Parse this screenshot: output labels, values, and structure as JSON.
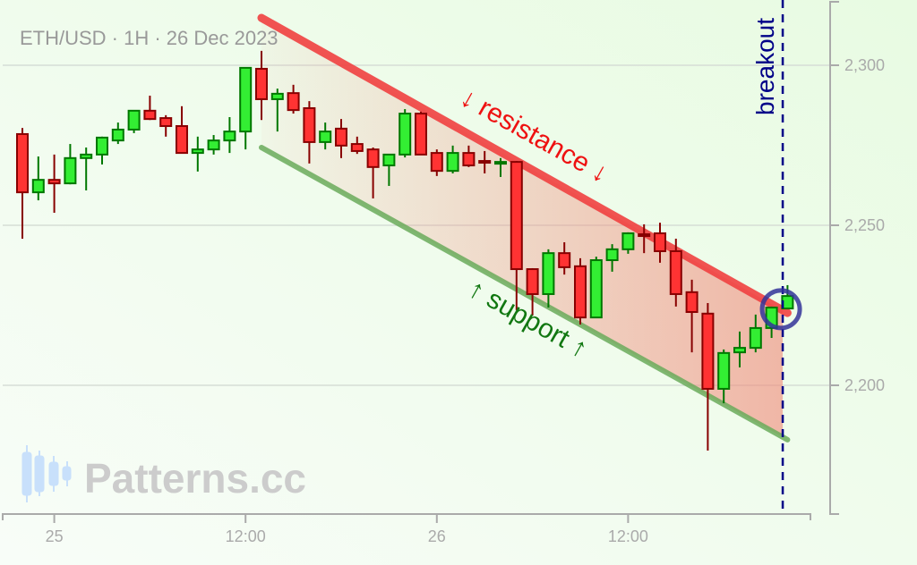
{
  "chart_data": {
    "type": "candlestick",
    "title": "ETH/USD · 1H · 26 Dec 2023",
    "watermark": "Patterns.cc",
    "colors": {
      "up_fill": "#33ee33",
      "up_stroke": "#007700",
      "down_fill": "#ff3333",
      "down_stroke": "#880000",
      "resistance": "#f04040",
      "support": "#6aaa5a",
      "breakout": "#000088",
      "channel_fill": "#f08878"
    },
    "y_ticks": [
      {
        "value": 2200,
        "label": "2,200"
      },
      {
        "value": 2250,
        "label": "2,250"
      },
      {
        "value": 2300,
        "label": "2,300"
      }
    ],
    "x_ticks": [
      {
        "index": 2,
        "label": "25"
      },
      {
        "index": 14,
        "label": "12:00"
      },
      {
        "index": 26,
        "label": "26"
      },
      {
        "index": 38,
        "label": "12:00"
      }
    ],
    "ylim": [
      2160,
      2320
    ],
    "xlim_index": [
      -1.2,
      49.4
    ],
    "grid": "horizontal",
    "candle_interval": "1H",
    "candles": [
      [
        2278.5,
        2280.4,
        2245.8,
        2260.3
      ],
      [
        2260.3,
        2271.5,
        2257.8,
        2264.2
      ],
      [
        2264.2,
        2272.1,
        2253.9,
        2263.1
      ],
      [
        2263.1,
        2275.4,
        2262.8,
        2271.0
      ],
      [
        2271.0,
        2274.3,
        2260.9,
        2272.1
      ],
      [
        2272.1,
        2277.7,
        2269.0,
        2277.4
      ],
      [
        2276.5,
        2282.1,
        2275.4,
        2279.9
      ],
      [
        2279.9,
        2286.0,
        2278.8,
        2285.8
      ],
      [
        2285.8,
        2290.5,
        2282.9,
        2283.2
      ],
      [
        2283.5,
        2284.4,
        2277.7,
        2281.0
      ],
      [
        2281.0,
        2287.2,
        2272.6,
        2272.6
      ],
      [
        2272.6,
        2277.7,
        2266.8,
        2273.7
      ],
      [
        2273.7,
        2278.2,
        2272.1,
        2276.5
      ],
      [
        2276.5,
        2283.8,
        2272.6,
        2279.3
      ],
      [
        2279.3,
        2299.4,
        2273.7,
        2299.2
      ],
      [
        2298.9,
        2304.5,
        2282.9,
        2289.4
      ],
      [
        2289.4,
        2292.7,
        2279.3,
        2291.1
      ],
      [
        2291.3,
        2293.9,
        2284.9,
        2286.0
      ],
      [
        2286.6,
        2288.8,
        2269.3,
        2276.0
      ],
      [
        2276.0,
        2282.1,
        2273.7,
        2279.3
      ],
      [
        2280.2,
        2283.2,
        2271.0,
        2274.9
      ],
      [
        2275.4,
        2277.7,
        2272.3,
        2273.2
      ],
      [
        2273.7,
        2274.3,
        2258.4,
        2268.2
      ],
      [
        2268.7,
        2272.3,
        2262.3,
        2272.1
      ],
      [
        2272.1,
        2286.3,
        2271.2,
        2284.9
      ],
      [
        2284.9,
        2285.5,
        2272.1,
        2272.1
      ],
      [
        2272.6,
        2273.7,
        2265.4,
        2267.0
      ],
      [
        2267.0,
        2274.9,
        2266.2,
        2272.6
      ],
      [
        2272.6,
        2274.9,
        2268.2,
        2268.7
      ],
      [
        2270.1,
        2273.2,
        2266.2,
        2269.8
      ],
      [
        2269.3,
        2271.0,
        2265.1,
        2269.8
      ],
      [
        2269.8,
        2270.1,
        2223.5,
        2236.3
      ],
      [
        2236.3,
        2236.6,
        2221.8,
        2228.5
      ],
      [
        2228.5,
        2242.5,
        2224.3,
        2241.3
      ],
      [
        2241.3,
        2244.7,
        2234.6,
        2236.9
      ],
      [
        2237.2,
        2239.7,
        2219.0,
        2221.2
      ],
      [
        2221.2,
        2240.2,
        2221.0,
        2239.1
      ],
      [
        2239.1,
        2244.1,
        2235.5,
        2242.5
      ],
      [
        2242.5,
        2247.8,
        2241.1,
        2247.5
      ],
      [
        2247.2,
        2250.3,
        2241.3,
        2247.1
      ],
      [
        2247.5,
        2250.8,
        2238.3,
        2241.9
      ],
      [
        2241.9,
        2245.8,
        2224.6,
        2228.5
      ],
      [
        2229.1,
        2233.0,
        2210.3,
        2222.9
      ],
      [
        2222.4,
        2225.7,
        2179.6,
        2198.9
      ],
      [
        2198.9,
        2211.2,
        2194.4,
        2210.1
      ],
      [
        2210.3,
        2216.8,
        2205.6,
        2211.7
      ],
      [
        2211.7,
        2222.1,
        2210.3,
        2217.9
      ],
      [
        2217.9,
        2224.6,
        2214.8,
        2224.3
      ],
      [
        2224.0,
        2231.3,
        2224.0,
        2227.9
      ]
    ],
    "candle_format": [
      "open",
      "high",
      "low",
      "close"
    ],
    "resistance_line": {
      "label": "↓ resistance ↓",
      "start": {
        "index": 15,
        "value": 2314.8
      },
      "end": {
        "index": 48,
        "value": 2222.6
      }
    },
    "support_line": {
      "label": "↑ support ↑",
      "start": {
        "index": 15,
        "value": 2274.3
      },
      "end": {
        "index": 48,
        "value": 2183.0
      }
    },
    "breakout": {
      "label": "breakout",
      "index": 47.7,
      "value": 2223.5
    }
  }
}
